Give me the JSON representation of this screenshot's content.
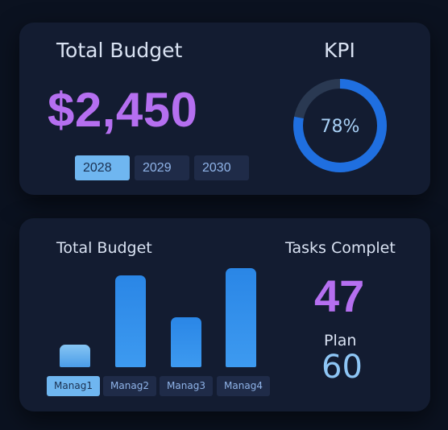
{
  "budget_card": {
    "title": "Total Budget",
    "amount": "$2,450",
    "years": [
      "2028",
      "2029",
      "2030"
    ],
    "selected_year": "2028"
  },
  "kpi": {
    "title": "KPI",
    "value_label": "78%",
    "value": 0.78,
    "ring_color": "#1f6fe0",
    "track_color": "#2a3952"
  },
  "bottom_card": {
    "chart_title": "Total Budget",
    "tasks_title": "Tasks Complet",
    "tasks_value": "47",
    "plan_label": "Plan",
    "plan_value": "60"
  },
  "chart_data": {
    "type": "bar",
    "categories": [
      "Manag1",
      "Manag2",
      "Manag3",
      "Manag4"
    ],
    "values": [
      25,
      100,
      55,
      108
    ],
    "ylim": [
      0,
      110
    ],
    "title": "Total Budget",
    "selected_category": "Manag1"
  },
  "colors": {
    "accent_purple": "#b56ff0",
    "accent_blue": "#2a86e6",
    "card_bg": "#131c31"
  }
}
